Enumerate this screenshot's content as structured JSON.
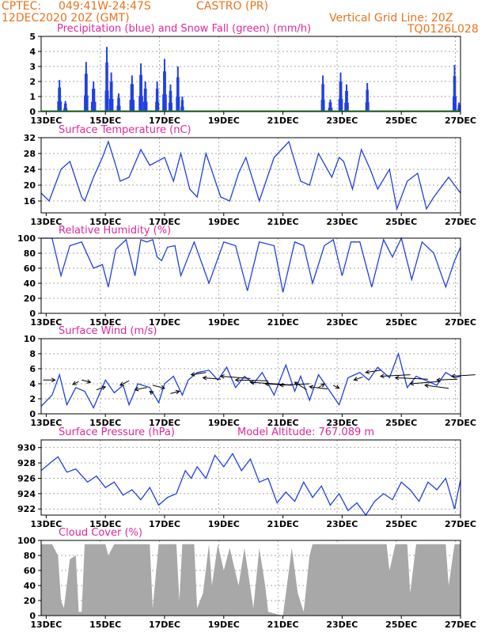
{
  "header": {
    "source": "CPTEC:",
    "coords": "049:41W-24:47S",
    "station": "CASTRO (PR)",
    "run": "12DEC2020 20Z (GMT)",
    "grid_note": "Vertical Grid Line: 20Z",
    "model": "TQ0126L028"
  },
  "colors": {
    "header": "#e8731e",
    "title": "#e0289a",
    "series": "#2040e0",
    "snow": "#20a020",
    "cloud": "#a8a8a8"
  },
  "chart_data": [
    {
      "id": "precip",
      "type": "bar",
      "title": "Precipitation (blue) and Snow Fall (green) (mm/h)",
      "x_tick_labels": [
        "13DEC",
        "15DEC",
        "17DEC",
        "19DEC",
        "21DEC",
        "23DEC",
        "25DEC",
        "27DEC"
      ],
      "x_range_days": [
        12.83,
        27.0
      ],
      "ylim": [
        0,
        5
      ],
      "yticks": [
        0,
        1,
        2,
        3,
        4,
        5
      ],
      "grid": true,
      "events": [
        {
          "day": 13.45,
          "peak": 2.1,
          "width": 0.12
        },
        {
          "day": 13.65,
          "peak": 0.7,
          "width": 0.1
        },
        {
          "day": 14.35,
          "peak": 3.3,
          "width": 0.12
        },
        {
          "day": 14.6,
          "peak": 2.0,
          "width": 0.15
        },
        {
          "day": 15.05,
          "peak": 4.3,
          "width": 0.1
        },
        {
          "day": 15.2,
          "peak": 2.6,
          "width": 0.12
        },
        {
          "day": 15.45,
          "peak": 1.2,
          "width": 0.1
        },
        {
          "day": 15.9,
          "peak": 2.4,
          "width": 0.15
        },
        {
          "day": 16.2,
          "peak": 3.2,
          "width": 0.12
        },
        {
          "day": 16.35,
          "peak": 2.0,
          "width": 0.12
        },
        {
          "day": 16.75,
          "peak": 2.0,
          "width": 0.1
        },
        {
          "day": 17.0,
          "peak": 3.5,
          "width": 0.12
        },
        {
          "day": 17.2,
          "peak": 1.8,
          "width": 0.1
        },
        {
          "day": 17.45,
          "peak": 3.0,
          "width": 0.1
        },
        {
          "day": 17.6,
          "peak": 1.0,
          "width": 0.08
        },
        {
          "day": 22.35,
          "peak": 2.4,
          "width": 0.1
        },
        {
          "day": 22.6,
          "peak": 0.8,
          "width": 0.12
        },
        {
          "day": 22.95,
          "peak": 2.6,
          "width": 0.12
        },
        {
          "day": 23.15,
          "peak": 1.8,
          "width": 0.12
        },
        {
          "day": 23.85,
          "peak": 1.9,
          "width": 0.1
        },
        {
          "day": 26.8,
          "peak": 3.1,
          "width": 0.1
        },
        {
          "day": 26.95,
          "peak": 0.6,
          "width": 0.08
        }
      ]
    },
    {
      "id": "temp",
      "type": "line",
      "title": "Surface Temperature (nC)",
      "x_tick_labels": [
        "13DEC",
        "15DEC",
        "17DEC",
        "19DEC",
        "21DEC",
        "23DEC",
        "25DEC",
        "27DEC"
      ],
      "x_range_days": [
        12.83,
        27.0
      ],
      "ylim": [
        13,
        32
      ],
      "yticks": [
        16,
        20,
        24,
        28,
        32
      ],
      "grid": true,
      "points": [
        [
          12.83,
          18
        ],
        [
          13.1,
          16
        ],
        [
          13.5,
          24
        ],
        [
          13.8,
          26
        ],
        [
          14.2,
          17
        ],
        [
          14.3,
          16
        ],
        [
          14.6,
          22
        ],
        [
          14.9,
          27
        ],
        [
          15.1,
          31
        ],
        [
          15.35,
          25
        ],
        [
          15.5,
          21
        ],
        [
          15.8,
          22
        ],
        [
          16.2,
          29
        ],
        [
          16.35,
          27
        ],
        [
          16.5,
          25
        ],
        [
          17.0,
          27
        ],
        [
          17.2,
          23
        ],
        [
          17.3,
          21
        ],
        [
          17.55,
          28
        ],
        [
          17.85,
          19
        ],
        [
          18.1,
          17
        ],
        [
          18.4,
          28
        ],
        [
          18.9,
          17
        ],
        [
          19.2,
          16
        ],
        [
          19.5,
          23
        ],
        [
          19.75,
          27
        ],
        [
          20.2,
          16
        ],
        [
          20.7,
          27
        ],
        [
          21.2,
          31
        ],
        [
          21.6,
          21
        ],
        [
          21.9,
          20
        ],
        [
          22.2,
          28
        ],
        [
          22.65,
          22
        ],
        [
          22.9,
          27
        ],
        [
          23.05,
          26
        ],
        [
          23.35,
          19
        ],
        [
          23.65,
          29
        ],
        [
          23.95,
          24
        ],
        [
          24.2,
          19
        ],
        [
          24.6,
          24
        ],
        [
          24.85,
          14
        ],
        [
          25.2,
          21
        ],
        [
          25.55,
          23
        ],
        [
          25.85,
          14
        ],
        [
          26.1,
          17
        ],
        [
          26.6,
          22
        ],
        [
          27.0,
          18
        ]
      ]
    },
    {
      "id": "rh",
      "type": "line",
      "title": "Relative Humidity (%)",
      "x_tick_labels": [
        "13DEC",
        "15DEC",
        "17DEC",
        "19DEC",
        "21DEC",
        "23DEC",
        "25DEC",
        "27DEC"
      ],
      "x_range_days": [
        12.83,
        27.0
      ],
      "ylim": [
        0,
        100
      ],
      "yticks": [
        0,
        20,
        40,
        60,
        80,
        100
      ],
      "grid": true,
      "points": [
        [
          12.83,
          100
        ],
        [
          13.2,
          100
        ],
        [
          13.5,
          50
        ],
        [
          13.8,
          90
        ],
        [
          14.2,
          95
        ],
        [
          14.6,
          60
        ],
        [
          14.9,
          65
        ],
        [
          15.1,
          35
        ],
        [
          15.35,
          85
        ],
        [
          15.7,
          98
        ],
        [
          16.0,
          50
        ],
        [
          16.2,
          98
        ],
        [
          16.4,
          95
        ],
        [
          16.6,
          98
        ],
        [
          16.75,
          75
        ],
        [
          16.9,
          70
        ],
        [
          17.1,
          88
        ],
        [
          17.35,
          90
        ],
        [
          17.55,
          50
        ],
        [
          18.0,
          95
        ],
        [
          18.5,
          40
        ],
        [
          19.0,
          95
        ],
        [
          19.4,
          90
        ],
        [
          19.8,
          30
        ],
        [
          20.2,
          95
        ],
        [
          20.7,
          90
        ],
        [
          21.0,
          28
        ],
        [
          21.4,
          95
        ],
        [
          21.7,
          90
        ],
        [
          22.0,
          40
        ],
        [
          22.4,
          90
        ],
        [
          22.7,
          98
        ],
        [
          23.0,
          50
        ],
        [
          23.3,
          95
        ],
        [
          23.6,
          95
        ],
        [
          24.0,
          35
        ],
        [
          24.4,
          98
        ],
        [
          24.7,
          75
        ],
        [
          25.0,
          100
        ],
        [
          25.35,
          45
        ],
        [
          25.7,
          95
        ],
        [
          26.1,
          80
        ],
        [
          26.5,
          35
        ],
        [
          26.8,
          70
        ],
        [
          27.0,
          88
        ]
      ]
    },
    {
      "id": "wind",
      "type": "line",
      "title": "Surface Wind (m/s)",
      "x_tick_labels": [
        "13DEC",
        "15DEC",
        "17DEC",
        "19DEC",
        "21DEC",
        "23DEC",
        "25DEC",
        "27DEC"
      ],
      "x_range_days": [
        12.83,
        27.0
      ],
      "ylim": [
        0,
        10
      ],
      "yticks": [
        0,
        2,
        4,
        6,
        8,
        10
      ],
      "grid": true,
      "points": [
        [
          12.83,
          1
        ],
        [
          13.2,
          2.5
        ],
        [
          13.45,
          5.2
        ],
        [
          13.7,
          1.2
        ],
        [
          14.0,
          3.5
        ],
        [
          14.3,
          3.0
        ],
        [
          14.6,
          0.8
        ],
        [
          15.0,
          4.5
        ],
        [
          15.3,
          2.8
        ],
        [
          15.6,
          3.8
        ],
        [
          15.8,
          1.2
        ],
        [
          16.1,
          4.0
        ],
        [
          16.5,
          3.5
        ],
        [
          16.8,
          1.5
        ],
        [
          17.0,
          4.0
        ],
        [
          17.3,
          5.0
        ],
        [
          17.6,
          2.5
        ],
        [
          17.8,
          4.5
        ],
        [
          18.1,
          5.5
        ],
        [
          18.5,
          5.8
        ],
        [
          18.8,
          4.5
        ],
        [
          19.1,
          6.2
        ],
        [
          19.4,
          3.5
        ],
        [
          19.7,
          5.0
        ],
        [
          20.0,
          4.0
        ],
        [
          20.3,
          5.5
        ],
        [
          20.7,
          2.5
        ],
        [
          21.1,
          6.5
        ],
        [
          21.4,
          3.0
        ],
        [
          21.6,
          5.0
        ],
        [
          21.9,
          1.8
        ],
        [
          22.2,
          5.2
        ],
        [
          22.5,
          3.5
        ],
        [
          22.9,
          1.2
        ],
        [
          23.2,
          4.8
        ],
        [
          23.6,
          5.5
        ],
        [
          23.9,
          4.5
        ],
        [
          24.2,
          6.2
        ],
        [
          24.6,
          4.8
        ],
        [
          24.9,
          8.0
        ],
        [
          25.2,
          3.5
        ],
        [
          25.5,
          5.0
        ],
        [
          25.8,
          4.5
        ],
        [
          26.2,
          3.8
        ],
        [
          26.5,
          5.5
        ],
        [
          26.8,
          4.8
        ],
        [
          27.0,
          5.0
        ]
      ],
      "barbs": [
        [
          13.3,
          4.5,
          -0.4,
          0.0
        ],
        [
          13.9,
          3.9,
          0.2,
          0.4
        ],
        [
          14.5,
          4.2,
          -0.3,
          0.3
        ],
        [
          15.0,
          3.6,
          -0.3,
          -0.4
        ],
        [
          15.5,
          3.8,
          0.3,
          0.6
        ],
        [
          16.0,
          3.2,
          0.4,
          0.3
        ],
        [
          16.5,
          3.0,
          0.1,
          -0.3
        ],
        [
          17.0,
          3.4,
          -0.4,
          0.4
        ],
        [
          17.5,
          3.0,
          -0.3,
          -0.3
        ],
        [
          17.9,
          5.2,
          0.5,
          0.3
        ],
        [
          18.3,
          4.8,
          0.6,
          -0.2
        ],
        [
          18.9,
          5.0,
          1.0,
          -0.3
        ],
        [
          19.4,
          4.5,
          1.1,
          -0.1
        ],
        [
          19.9,
          4.2,
          1.2,
          -0.3
        ],
        [
          20.4,
          4.0,
          0.9,
          -0.2
        ],
        [
          20.9,
          3.8,
          1.0,
          0.2
        ],
        [
          21.4,
          4.2,
          0.4,
          -1.0
        ],
        [
          21.9,
          3.6,
          0.6,
          -0.3
        ],
        [
          22.4,
          4.0,
          -0.2,
          -0.5
        ],
        [
          22.9,
          3.4,
          -0.2,
          0.4
        ],
        [
          23.4,
          4.5,
          0.3,
          0.4
        ],
        [
          23.8,
          5.5,
          0.5,
          0.3
        ],
        [
          24.3,
          5.0,
          1.0,
          0.2
        ],
        [
          24.8,
          4.8,
          1.1,
          -0.2
        ],
        [
          25.3,
          4.0,
          1.0,
          0.3
        ],
        [
          25.8,
          3.8,
          0.8,
          -0.4
        ],
        [
          26.2,
          4.5,
          0.7,
          0.1
        ],
        [
          26.7,
          5.0,
          0.8,
          0.2
        ]
      ]
    },
    {
      "id": "pressure",
      "type": "line",
      "title": "Surface Pressure (hPa)",
      "annotation": "Model Altitude: 767.089  m",
      "x_tick_labels": [
        "13DEC",
        "15DEC",
        "17DEC",
        "19DEC",
        "21DEC",
        "23DEC",
        "25DEC",
        "27DEC"
      ],
      "x_range_days": [
        12.83,
        27.0
      ],
      "ylim": [
        921.2,
        931
      ],
      "yticks": [
        922,
        924,
        926,
        928,
        930
      ],
      "grid": true,
      "points": [
        [
          12.83,
          927
        ],
        [
          13.2,
          928.2
        ],
        [
          13.4,
          928.8
        ],
        [
          13.7,
          926.8
        ],
        [
          14.0,
          927.2
        ],
        [
          14.4,
          925.5
        ],
        [
          14.7,
          926.3
        ],
        [
          15.0,
          924.8
        ],
        [
          15.3,
          925.5
        ],
        [
          15.6,
          923.8
        ],
        [
          15.9,
          924.5
        ],
        [
          16.2,
          923.2
        ],
        [
          16.5,
          924.8
        ],
        [
          16.8,
          922.5
        ],
        [
          17.1,
          923.5
        ],
        [
          17.4,
          924.0
        ],
        [
          17.7,
          927.0
        ],
        [
          17.9,
          926.0
        ],
        [
          18.1,
          927.5
        ],
        [
          18.4,
          926.0
        ],
        [
          18.7,
          929.0
        ],
        [
          19.0,
          927.5
        ],
        [
          19.3,
          929.2
        ],
        [
          19.6,
          927.0
        ],
        [
          19.9,
          928.5
        ],
        [
          20.2,
          925.5
        ],
        [
          20.5,
          926.0
        ],
        [
          20.8,
          922.8
        ],
        [
          21.1,
          924.2
        ],
        [
          21.4,
          923.0
        ],
        [
          21.7,
          925.5
        ],
        [
          22.0,
          923.5
        ],
        [
          22.3,
          925.0
        ],
        [
          22.6,
          922.5
        ],
        [
          22.9,
          924.0
        ],
        [
          23.2,
          921.8
        ],
        [
          23.5,
          922.8
        ],
        [
          23.8,
          921.2
        ],
        [
          24.1,
          923.0
        ],
        [
          24.4,
          924.0
        ],
        [
          24.7,
          923.2
        ],
        [
          25.0,
          925.5
        ],
        [
          25.3,
          924.5
        ],
        [
          25.6,
          923.0
        ],
        [
          25.9,
          925.5
        ],
        [
          26.2,
          924.5
        ],
        [
          26.5,
          926.0
        ],
        [
          26.8,
          922.0
        ],
        [
          27.0,
          925.8
        ]
      ]
    },
    {
      "id": "cloud",
      "type": "area",
      "title": "Cloud Cover (%)",
      "x_tick_labels": [
        "13DEC",
        "15DEC",
        "17DEC",
        "19DEC",
        "21DEC",
        "23DEC",
        "25DEC",
        "27DEC"
      ],
      "x_range_days": [
        12.83,
        27.0
      ],
      "ylim": [
        0,
        100
      ],
      "yticks": [
        0,
        20,
        40,
        60,
        80,
        100
      ],
      "grid": true,
      "points": [
        [
          12.83,
          95
        ],
        [
          13.2,
          95
        ],
        [
          13.4,
          80
        ],
        [
          13.5,
          20
        ],
        [
          13.6,
          10
        ],
        [
          13.8,
          75
        ],
        [
          14.0,
          80
        ],
        [
          14.1,
          5
        ],
        [
          14.2,
          5
        ],
        [
          14.3,
          95
        ],
        [
          15.0,
          95
        ],
        [
          15.1,
          80
        ],
        [
          15.3,
          95
        ],
        [
          16.5,
          95
        ],
        [
          16.6,
          10
        ],
        [
          16.8,
          95
        ],
        [
          17.4,
          95
        ],
        [
          17.5,
          20
        ],
        [
          17.6,
          95
        ],
        [
          18.0,
          95
        ],
        [
          18.1,
          10
        ],
        [
          18.3,
          30
        ],
        [
          18.5,
          95
        ],
        [
          18.6,
          40
        ],
        [
          18.8,
          95
        ],
        [
          19.0,
          60
        ],
        [
          19.2,
          90
        ],
        [
          19.5,
          40
        ],
        [
          19.7,
          90
        ],
        [
          20.0,
          10
        ],
        [
          20.2,
          90
        ],
        [
          20.4,
          40
        ],
        [
          20.5,
          5
        ],
        [
          21.0,
          0
        ],
        [
          21.3,
          90
        ],
        [
          21.5,
          30
        ],
        [
          21.7,
          5
        ],
        [
          21.9,
          80
        ],
        [
          22.0,
          95
        ],
        [
          24.5,
          95
        ],
        [
          24.6,
          60
        ],
        [
          24.8,
          95
        ],
        [
          25.2,
          95
        ],
        [
          25.3,
          30
        ],
        [
          25.5,
          95
        ],
        [
          26.5,
          95
        ],
        [
          26.6,
          40
        ],
        [
          26.8,
          95
        ],
        [
          27.0,
          95
        ]
      ]
    }
  ]
}
